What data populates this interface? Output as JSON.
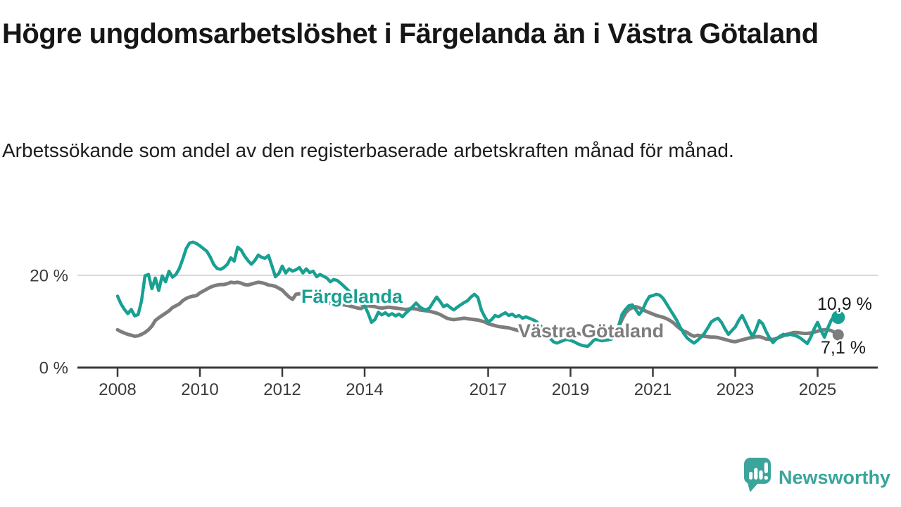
{
  "header": {
    "title": "Högre ungdomsarbetslöshet i Färgelanda än i Västra Götaland",
    "subtitle": "Arbetssökande som andel av den registerbaserade arbetskraften månad för månad."
  },
  "chart_data": {
    "type": "line",
    "unit": "%",
    "x_start": "2008-01",
    "x_step_months": 1,
    "x_end": "2025-07",
    "ylim": [
      0,
      30
    ],
    "grid": "horizontal gridline at 20 % only",
    "legend_position": "inline labels on lines",
    "x_ticks": [
      {
        "year": 2008,
        "label": "2008"
      },
      {
        "year": 2010,
        "label": "2010"
      },
      {
        "year": 2012,
        "label": "2012"
      },
      {
        "year": 2014,
        "label": "2014"
      },
      {
        "year": 2017,
        "label": "2017"
      },
      {
        "year": 2019,
        "label": "2019"
      },
      {
        "year": 2021,
        "label": "2021"
      },
      {
        "year": 2023,
        "label": "2023"
      },
      {
        "year": 2025,
        "label": "2025"
      }
    ],
    "y_ticks": [
      {
        "value": 0,
        "label": "0 %",
        "gridline": false
      },
      {
        "value": 20,
        "label": "20 %",
        "gridline": true
      }
    ],
    "series": [
      {
        "name": "Färgelanda",
        "color": "#18a092",
        "end_label": "10,9 %",
        "end_value": 10.9,
        "values": [
          15.5,
          13.8,
          12.6,
          11.7,
          12.6,
          11.2,
          11.5,
          14.5,
          19.9,
          20.2,
          17.1,
          19.4,
          16.7,
          19.9,
          18.6,
          20.9,
          19.6,
          20.2,
          21.5,
          23.5,
          25.8,
          27.0,
          27.2,
          26.9,
          26.4,
          25.8,
          25.2,
          24.0,
          22.4,
          21.5,
          21.3,
          21.7,
          22.4,
          23.8,
          23.1,
          26.1,
          25.5,
          24.2,
          23.2,
          22.4,
          23.2,
          24.4,
          23.9,
          23.7,
          24.3,
          22.0,
          19.7,
          20.4,
          22.0,
          20.5,
          21.4,
          20.9,
          21.2,
          21.7,
          20.5,
          21.4,
          20.6,
          20.9,
          19.7,
          20.2,
          19.8,
          19.4,
          18.6,
          19.1,
          18.9,
          18.3,
          17.6,
          16.9,
          16.1,
          15.3,
          14.5,
          13.8,
          13.4,
          11.8,
          9.8,
          10.4,
          12.0,
          11.4,
          11.9,
          11.3,
          11.7,
          11.2,
          11.6,
          11.0,
          11.8,
          12.5,
          13.2,
          14.0,
          13.2,
          12.7,
          12.5,
          13.0,
          14.2,
          15.3,
          14.3,
          13.2,
          13.6,
          13.0,
          12.5,
          13.1,
          13.6,
          14.1,
          14.5,
          15.3,
          15.9,
          15.2,
          12.5,
          11.0,
          9.9,
          10.4,
          11.3,
          11.0,
          11.5,
          11.9,
          11.3,
          11.6,
          11.0,
          11.3,
          10.7,
          11.0,
          10.7,
          10.4,
          10.0,
          9.3,
          8.4,
          7.4,
          6.4,
          5.6,
          5.3,
          5.6,
          5.9,
          6.1,
          5.9,
          5.6,
          5.2,
          4.9,
          4.7,
          4.6,
          5.3,
          6.1,
          6.0,
          5.8,
          5.9,
          6.0,
          6.2,
          7.0,
          9.0,
          11.5,
          12.6,
          13.4,
          13.6,
          12.6,
          11.5,
          12.5,
          14.2,
          15.4,
          15.6,
          15.9,
          15.7,
          15.0,
          13.8,
          12.6,
          11.4,
          10.2,
          8.7,
          7.4,
          6.4,
          5.8,
          5.3,
          5.9,
          6.6,
          7.4,
          8.6,
          9.9,
          10.4,
          10.7,
          9.8,
          8.4,
          7.2,
          8.0,
          8.8,
          10.2,
          11.3,
          9.8,
          8.2,
          6.7,
          8.2,
          10.2,
          9.5,
          7.8,
          6.4,
          5.4,
          6.2,
          6.8,
          7.2,
          7.0,
          7.2,
          7.0,
          6.8,
          6.4,
          5.8,
          5.2,
          6.6,
          8.4,
          9.8,
          8.0,
          6.6,
          8.6,
          10.3,
          11.3,
          10.9
        ]
      },
      {
        "name": "Västra Götaland",
        "color": "#7d7d7d",
        "end_label": "7,1 %",
        "end_value": 7.1,
        "values": [
          8.2,
          7.8,
          7.5,
          7.2,
          7.0,
          6.8,
          6.9,
          7.2,
          7.6,
          8.2,
          9.0,
          10.2,
          10.8,
          11.3,
          11.8,
          12.3,
          13.0,
          13.4,
          13.8,
          14.5,
          15.0,
          15.3,
          15.5,
          15.6,
          16.2,
          16.6,
          17.0,
          17.4,
          17.7,
          17.9,
          18.0,
          18.0,
          18.2,
          18.5,
          18.4,
          18.5,
          18.3,
          18.0,
          17.9,
          18.1,
          18.3,
          18.5,
          18.4,
          18.2,
          17.9,
          17.8,
          17.6,
          17.2,
          16.8,
          16.0,
          15.3,
          14.8,
          15.9,
          16.0,
          16.0,
          15.8,
          15.6,
          15.1,
          14.7,
          14.4,
          14.2,
          14.1,
          14.0,
          13.9,
          13.8,
          13.7,
          13.6,
          13.5,
          13.3,
          13.1,
          12.9,
          12.8,
          13.3,
          13.4,
          13.3,
          13.2,
          13.0,
          12.9,
          13.0,
          13.1,
          13.0,
          12.9,
          12.8,
          12.7,
          12.6,
          12.7,
          12.8,
          12.7,
          12.5,
          12.4,
          12.3,
          12.2,
          12.0,
          11.8,
          11.5,
          11.1,
          10.7,
          10.5,
          10.4,
          10.5,
          10.6,
          10.7,
          10.6,
          10.5,
          10.4,
          10.3,
          10.1,
          9.9,
          9.5,
          9.3,
          9.1,
          8.9,
          8.8,
          8.7,
          8.6,
          8.4,
          8.2,
          8.0,
          7.9,
          7.9,
          7.8,
          7.8,
          7.7,
          7.7,
          7.6,
          7.6,
          7.5,
          7.5,
          7.4,
          7.4,
          7.4,
          7.5,
          7.5,
          7.4,
          7.4,
          7.3,
          7.3,
          7.4,
          7.5,
          7.5,
          7.5,
          7.5,
          7.6,
          7.7,
          7.9,
          8.1,
          8.8,
          10.4,
          11.8,
          12.6,
          13.0,
          13.2,
          13.0,
          12.6,
          12.2,
          11.9,
          11.6,
          11.3,
          11.1,
          10.9,
          10.6,
          10.2,
          9.7,
          9.0,
          8.4,
          7.9,
          7.6,
          7.1,
          6.8,
          7.0,
          6.9,
          6.8,
          6.7,
          6.6,
          6.6,
          6.5,
          6.3,
          6.1,
          5.9,
          5.7,
          5.6,
          5.8,
          6.0,
          6.2,
          6.4,
          6.5,
          6.7,
          6.7,
          6.5,
          6.2,
          6.1,
          6.1,
          6.3,
          6.6,
          6.9,
          7.2,
          7.4,
          7.6,
          7.6,
          7.5,
          7.4,
          7.4,
          7.5,
          7.7,
          7.9,
          8.1,
          8.2,
          8.2,
          8.0,
          7.6,
          7.1
        ]
      }
    ],
    "colors": {
      "grid": "#d9d9d9",
      "axis": "#3a3a3a",
      "tick_text": "#3a3a3a"
    }
  },
  "footer": {
    "brand": "Newsworthy",
    "brand_color": "#3ba59b"
  }
}
